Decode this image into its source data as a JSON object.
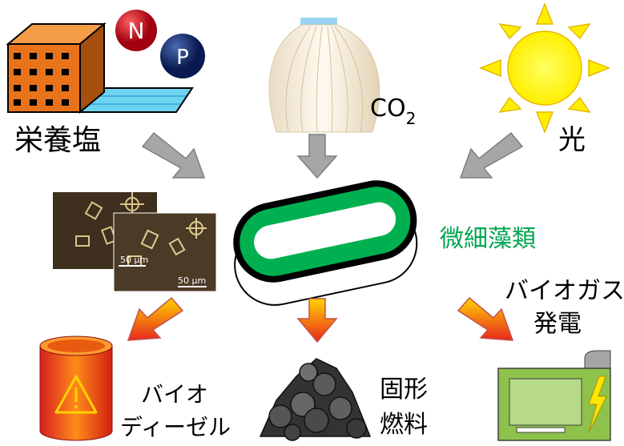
{
  "inputs": {
    "nutrients": {
      "label": "栄養塩",
      "n": "N",
      "p": "P"
    },
    "co2": {
      "label": "CO",
      "subscript": "2"
    },
    "light": {
      "label": "光"
    }
  },
  "center": {
    "label": "微細藻類",
    "scale_labels": [
      "50 μm",
      "50 μm"
    ]
  },
  "outputs": [
    {
      "lines": [
        "バイオ",
        "ディーゼル"
      ]
    },
    {
      "lines": [
        "固形",
        "燃料"
      ]
    },
    {
      "lines": [
        "バイオガス",
        "発電"
      ]
    }
  ]
}
